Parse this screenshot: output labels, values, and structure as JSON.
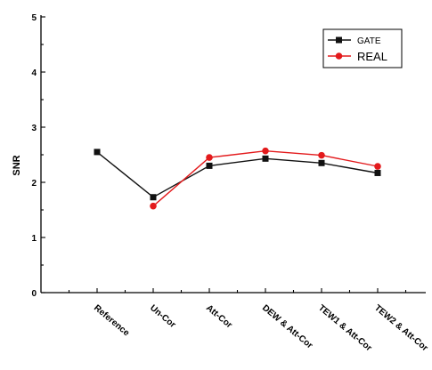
{
  "chart_data": {
    "type": "line",
    "ylabel": "SNR",
    "xlabel": "",
    "title": "",
    "categories": [
      "Reference",
      "Un-Cor",
      "Att-Cor",
      "DEW & Att-Cor",
      "TEW1 & Att-Cor",
      "TEW2 & Att-Cor"
    ],
    "yticks": [
      "0",
      "1",
      "2",
      "3",
      "4",
      "5"
    ],
    "ylim": [
      0,
      5
    ],
    "grid": false,
    "legend": "top-right",
    "series": [
      {
        "name": "GATE",
        "color": "#111111",
        "marker": "square",
        "values": [
          2.55,
          1.73,
          2.3,
          2.43,
          2.35,
          2.17
        ]
      },
      {
        "name": "REAL",
        "color": "#e31a1c",
        "marker": "circle",
        "values": [
          null,
          1.57,
          2.45,
          2.57,
          2.49,
          2.29
        ]
      }
    ]
  }
}
